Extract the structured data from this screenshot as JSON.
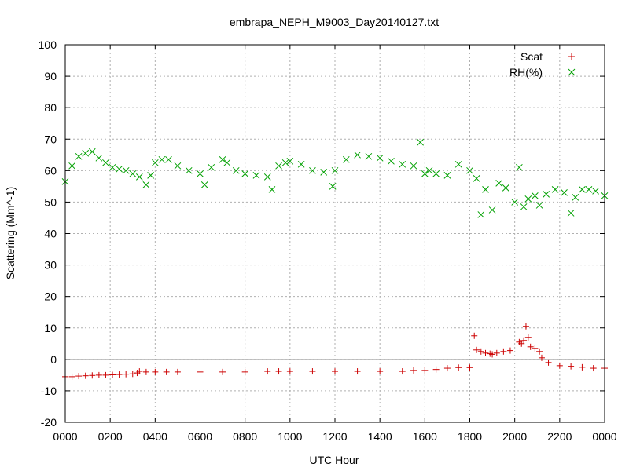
{
  "chart_data": {
    "type": "scatter",
    "title": "embrapa_NEPH_M9003_Day20140127.txt",
    "xlabel": "UTC Hour",
    "ylabel": "Scattering (Mm^-1)",
    "xlim": [
      0,
      2400
    ],
    "ylim": [
      -20,
      100
    ],
    "x_ticks": [
      "0000",
      "0200",
      "0400",
      "0600",
      "0800",
      "1000",
      "1200",
      "1400",
      "1600",
      "1800",
      "2000",
      "2200",
      "0000"
    ],
    "y_ticks": [
      "-20",
      "-10",
      "0",
      "10",
      "20",
      "30",
      "40",
      "50",
      "60",
      "70",
      "80",
      "90",
      "100"
    ],
    "grid": true,
    "zero_line": true,
    "legend_position": "top-right",
    "series": [
      {
        "name": "Scat",
        "marker": "+",
        "color": "#cc0000",
        "x": [
          0,
          30,
          60,
          90,
          120,
          150,
          180,
          210,
          240,
          270,
          300,
          320,
          330,
          360,
          400,
          450,
          500,
          600,
          700,
          800,
          900,
          950,
          1000,
          1100,
          1200,
          1300,
          1400,
          1500,
          1550,
          1600,
          1650,
          1700,
          1750,
          1800,
          1820,
          1830,
          1850,
          1870,
          1890,
          1900,
          1920,
          1950,
          1980,
          2020,
          2030,
          2040,
          2050,
          2060,
          2070,
          2090,
          2110,
          2120,
          2150,
          2200,
          2250,
          2300,
          2350,
          2400
        ],
        "y": [
          -5.5,
          -5.5,
          -5.3,
          -5.2,
          -5.1,
          -5.0,
          -5.0,
          -4.9,
          -4.8,
          -4.7,
          -4.6,
          -4.3,
          -3.8,
          -4.0,
          -4.0,
          -4.0,
          -4.0,
          -4.0,
          -4.0,
          -4.0,
          -3.8,
          -3.8,
          -3.8,
          -3.8,
          -3.8,
          -3.8,
          -3.8,
          -3.8,
          -3.5,
          -3.5,
          -3.2,
          -2.8,
          -2.6,
          -2.6,
          7.5,
          3.0,
          2.5,
          2.0,
          1.8,
          1.6,
          2.0,
          2.5,
          2.8,
          5.5,
          5.0,
          6.0,
          10.5,
          7.0,
          4.0,
          3.5,
          2.5,
          0.5,
          -1.0,
          -2.0,
          -2.2,
          -2.5,
          -2.8,
          -2.8
        ]
      },
      {
        "name": "RH(%)",
        "marker": "x",
        "color": "#00a000",
        "x": [
          0,
          30,
          60,
          90,
          120,
          150,
          180,
          210,
          240,
          270,
          300,
          330,
          360,
          380,
          400,
          430,
          460,
          500,
          550,
          600,
          620,
          650,
          700,
          720,
          760,
          800,
          850,
          900,
          920,
          950,
          980,
          1000,
          1050,
          1100,
          1150,
          1190,
          1200,
          1250,
          1300,
          1350,
          1400,
          1450,
          1500,
          1550,
          1580,
          1600,
          1620,
          1650,
          1700,
          1750,
          1800,
          1830,
          1850,
          1870,
          1900,
          1930,
          1960,
          2000,
          2020,
          2040,
          2060,
          2090,
          2110,
          2140,
          2180,
          2220,
          2250,
          2270,
          2300,
          2330,
          2360,
          2400
        ],
        "y": [
          56.5,
          61.5,
          64.5,
          65.5,
          66.0,
          64.0,
          62.5,
          61.0,
          60.5,
          60.0,
          59.0,
          58.0,
          55.5,
          58.5,
          62.5,
          63.5,
          63.5,
          61.5,
          60.0,
          59.0,
          55.5,
          61.0,
          63.5,
          62.5,
          60.0,
          59.0,
          58.5,
          58.0,
          54.0,
          61.5,
          62.5,
          63.0,
          62.0,
          60.0,
          59.5,
          55.0,
          60.0,
          63.5,
          65.0,
          64.5,
          64.0,
          63.0,
          62.0,
          61.5,
          69.0,
          59.0,
          60.0,
          59.0,
          58.5,
          62.0,
          60.0,
          57.5,
          46.0,
          54.0,
          47.5,
          56.0,
          54.5,
          50.0,
          61.0,
          48.5,
          51.0,
          52.0,
          49.0,
          52.5,
          54.0,
          53.0,
          46.5,
          51.5,
          54.0,
          54.0,
          53.5,
          52.0
        ]
      }
    ]
  }
}
